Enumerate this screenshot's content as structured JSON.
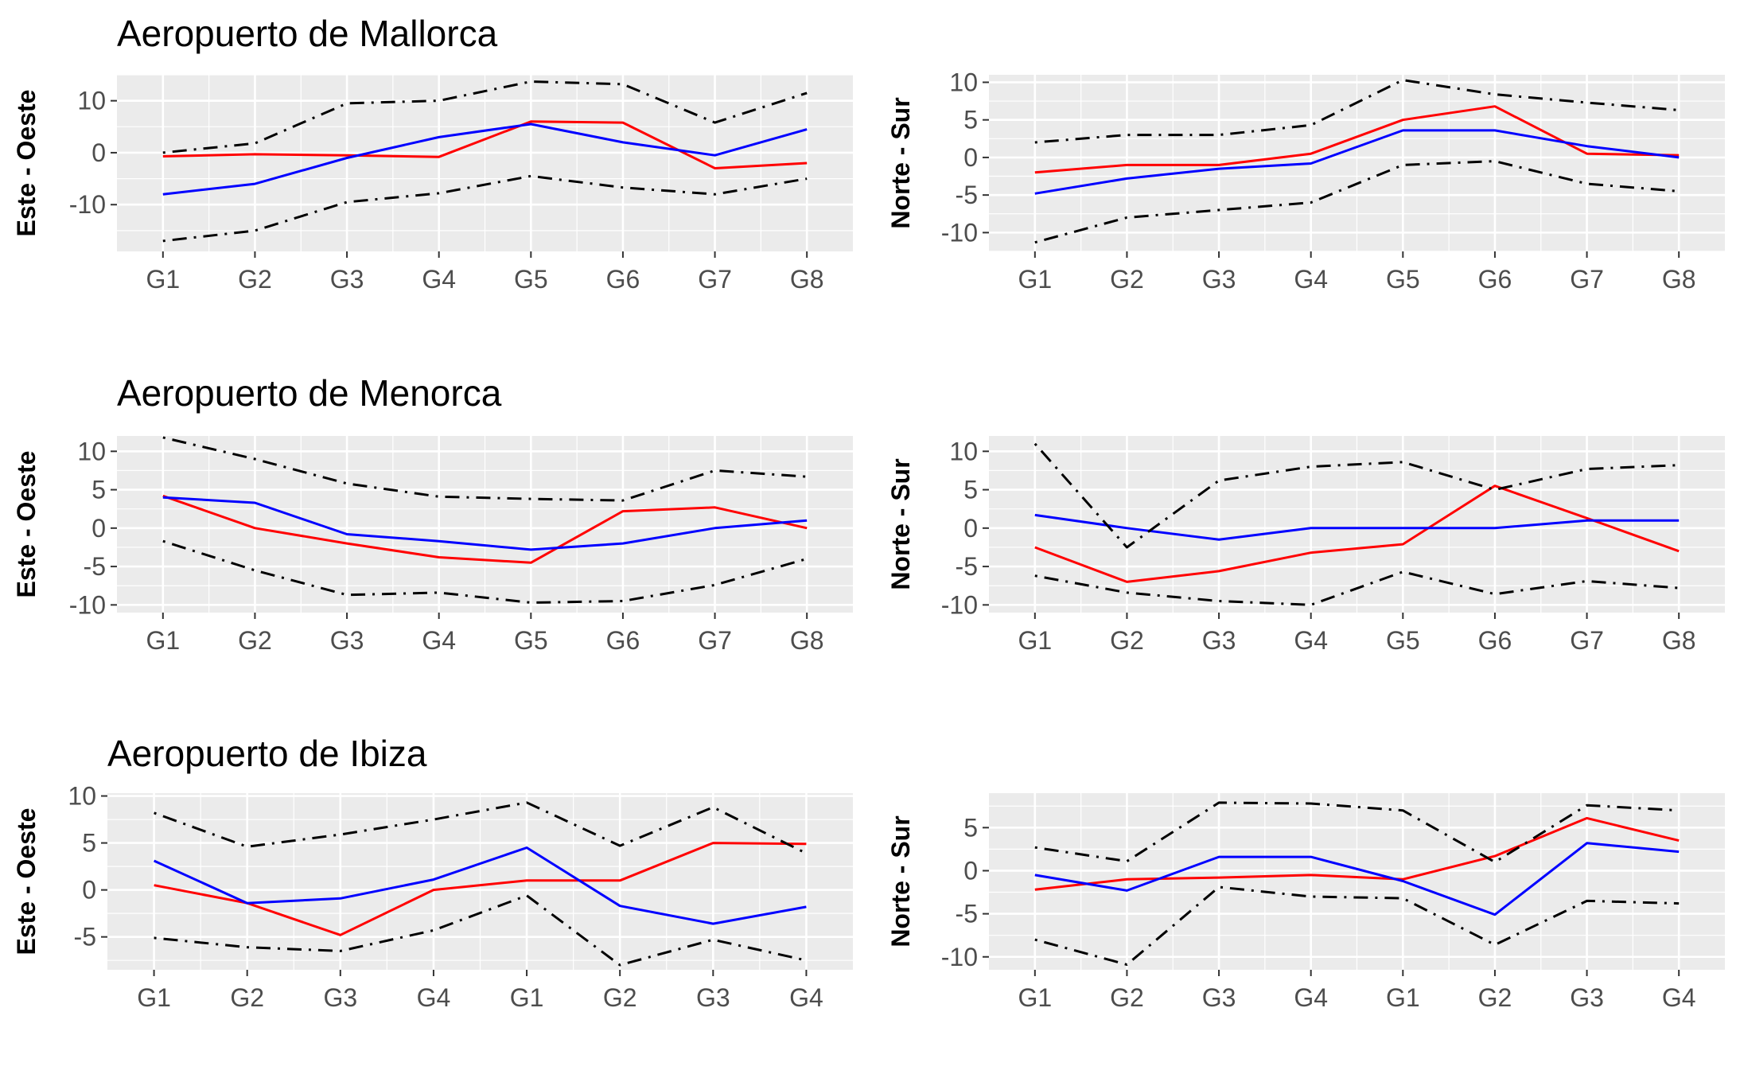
{
  "colors": {
    "panel_bg": "#EBEBEB",
    "grid": "#FFFFFF",
    "tick_text": "#4D4D4D",
    "tick_mark": "#333333",
    "red": "#FF0000",
    "blue": "#0000FF",
    "band": "#000000"
  },
  "chart_data": [
    {
      "type": "line",
      "title": "Aeropuerto de Mallorca",
      "ylabel": "Este - Oeste",
      "categories": [
        "G1",
        "G2",
        "G3",
        "G4",
        "G5",
        "G6",
        "G7",
        "G8"
      ],
      "ylim": [
        -19,
        15
      ],
      "yticks": [
        -10,
        0,
        10
      ],
      "series": [
        {
          "color": "red",
          "style": "solid",
          "values": [
            -0.7,
            -0.3,
            -0.5,
            -0.8,
            6,
            5.8,
            -3,
            -2
          ]
        },
        {
          "color": "blue",
          "style": "solid",
          "values": [
            -8,
            -6,
            -1,
            3,
            5.5,
            2,
            -0.5,
            4.5
          ]
        },
        {
          "color": "black",
          "style": "dotdash",
          "values": [
            0,
            1.8,
            9.5,
            10,
            13.7,
            13.2,
            5.8,
            11.5
          ]
        },
        {
          "color": "black",
          "style": "dotdash",
          "values": [
            -17,
            -15,
            -9.5,
            -7.8,
            -4.5,
            -6.7,
            -8,
            -5
          ]
        }
      ]
    },
    {
      "type": "line",
      "title": "",
      "ylabel": "Norte - Sur",
      "categories": [
        "G1",
        "G2",
        "G3",
        "G4",
        "G5",
        "G6",
        "G7",
        "G8"
      ],
      "ylim": [
        -12.5,
        11
      ],
      "yticks": [
        -10,
        -5,
        0,
        5,
        10
      ],
      "series": [
        {
          "color": "red",
          "style": "solid",
          "values": [
            -2,
            -1,
            -1,
            0.5,
            5,
            6.8,
            0.5,
            0.3
          ]
        },
        {
          "color": "blue",
          "style": "solid",
          "values": [
            -4.8,
            -2.8,
            -1.5,
            -0.8,
            3.6,
            3.6,
            1.5,
            0
          ]
        },
        {
          "color": "black",
          "style": "dotdash",
          "values": [
            2,
            3,
            3,
            4.3,
            10.3,
            8.4,
            7.3,
            6.3
          ]
        },
        {
          "color": "black",
          "style": "dotdash",
          "values": [
            -11.3,
            -8,
            -7,
            -6,
            -1,
            -0.5,
            -3.5,
            -4.5
          ]
        }
      ]
    },
    {
      "type": "line",
      "title": "Aeropuerto de Menorca",
      "ylabel": "Este - Oeste",
      "categories": [
        "G1",
        "G2",
        "G3",
        "G4",
        "G5",
        "G6",
        "G7",
        "G8"
      ],
      "ylim": [
        -11,
        12
      ],
      "yticks": [
        -10,
        -5,
        0,
        5,
        10
      ],
      "series": [
        {
          "color": "red",
          "style": "solid",
          "values": [
            4.2,
            0,
            -2,
            -3.8,
            -4.5,
            2.2,
            2.7,
            0
          ]
        },
        {
          "color": "blue",
          "style": "solid",
          "values": [
            4,
            3.3,
            -0.8,
            -1.7,
            -2.8,
            -2,
            0,
            1
          ]
        },
        {
          "color": "black",
          "style": "dotdash",
          "values": [
            11.8,
            9,
            5.8,
            4.1,
            3.8,
            3.6,
            7.5,
            6.7
          ]
        },
        {
          "color": "black",
          "style": "dotdash",
          "values": [
            -1.7,
            -5.5,
            -8.7,
            -8.4,
            -9.7,
            -9.5,
            -7.4,
            -4
          ]
        }
      ]
    },
    {
      "type": "line",
      "title": "",
      "ylabel": "Norte - Sur",
      "categories": [
        "G1",
        "G2",
        "G3",
        "G4",
        "G5",
        "G6",
        "G7",
        "G8"
      ],
      "ylim": [
        -11,
        12
      ],
      "yticks": [
        -10,
        -5,
        0,
        5,
        10
      ],
      "series": [
        {
          "color": "red",
          "style": "solid",
          "values": [
            -2.5,
            -7,
            -5.6,
            -3.2,
            -2.1,
            5.5,
            1.3,
            -3
          ]
        },
        {
          "color": "blue",
          "style": "solid",
          "values": [
            1.7,
            0,
            -1.5,
            0,
            0,
            0,
            1,
            1
          ]
        },
        {
          "color": "black",
          "style": "dotdash",
          "values": [
            11,
            -2.5,
            6.2,
            8,
            8.6,
            5,
            7.7,
            8.2
          ]
        },
        {
          "color": "black",
          "style": "dotdash",
          "values": [
            -6.2,
            -8.4,
            -9.5,
            -10,
            -5.7,
            -8.6,
            -6.9,
            -7.8
          ]
        }
      ]
    },
    {
      "type": "line",
      "title": "Aeropuerto de Ibiza",
      "ylabel": "Este - Oeste",
      "categories": [
        "G1",
        "G2",
        "G3",
        "G4",
        "G1",
        "G2",
        "G3",
        "G4"
      ],
      "ylim": [
        -8.5,
        10.3
      ],
      "yticks": [
        -5,
        0,
        5,
        10
      ],
      "series": [
        {
          "color": "red",
          "style": "solid",
          "values": [
            0.5,
            -1.4,
            -4.8,
            0,
            1,
            1,
            5,
            4.9
          ]
        },
        {
          "color": "blue",
          "style": "solid",
          "values": [
            3.1,
            -1.4,
            -0.9,
            1.1,
            4.5,
            -1.7,
            -3.6,
            -1.8
          ]
        },
        {
          "color": "black",
          "style": "dotdash",
          "values": [
            8.2,
            4.6,
            5.9,
            7.5,
            9.3,
            4.7,
            8.8,
            3.9
          ]
        },
        {
          "color": "black",
          "style": "dotdash",
          "values": [
            -5.1,
            -6.1,
            -6.5,
            -4.3,
            -0.6,
            -8,
            -5.3,
            -7.5
          ]
        }
      ]
    },
    {
      "type": "line",
      "title": "",
      "ylabel": "Norte - Sur",
      "categories": [
        "G1",
        "G2",
        "G3",
        "G4",
        "G1",
        "G2",
        "G3",
        "G4"
      ],
      "ylim": [
        -11.5,
        9
      ],
      "yticks": [
        -10,
        -5,
        0,
        5
      ],
      "series": [
        {
          "color": "red",
          "style": "solid",
          "values": [
            -2.2,
            -1,
            -0.8,
            -0.5,
            -1,
            1.7,
            6.1,
            3.5
          ]
        },
        {
          "color": "blue",
          "style": "solid",
          "values": [
            -0.5,
            -2.3,
            1.6,
            1.6,
            -1.2,
            -5.1,
            3.2,
            2.2
          ]
        },
        {
          "color": "black",
          "style": "dotdash",
          "values": [
            2.7,
            1.1,
            7.9,
            7.8,
            7,
            1,
            7.6,
            7
          ]
        },
        {
          "color": "black",
          "style": "dotdash",
          "values": [
            -8,
            -10.9,
            -1.9,
            -3,
            -3.2,
            -8.6,
            -3.5,
            -3.8
          ]
        }
      ]
    }
  ]
}
